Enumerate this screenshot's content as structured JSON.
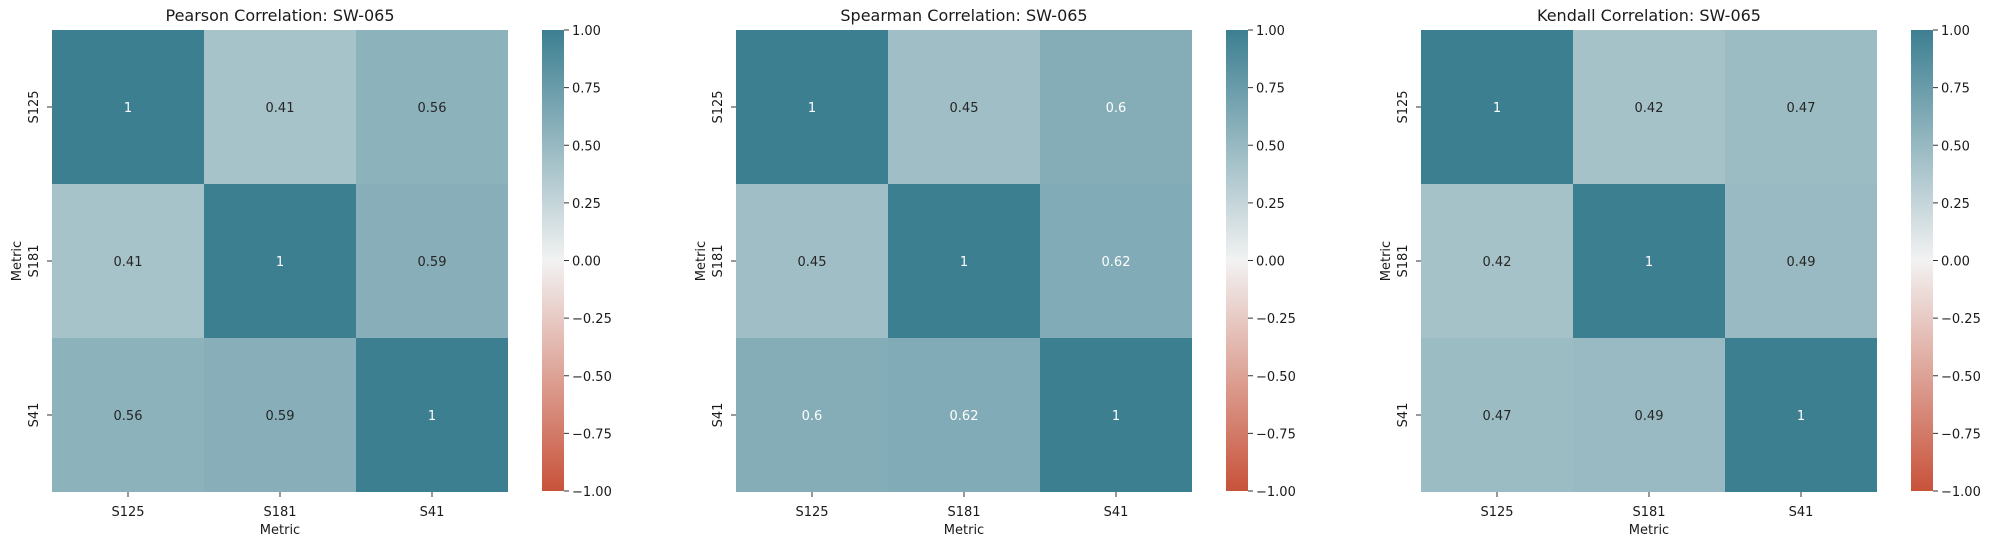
{
  "chart_data": [
    {
      "type": "heatmap",
      "title": "Pearson Correlation: SW-065",
      "xlabel": "Metric",
      "ylabel": "Metric",
      "x_categories": [
        "S125",
        "S181",
        "S41"
      ],
      "y_categories": [
        "S125",
        "S181",
        "S41"
      ],
      "values": [
        [
          1,
          0.41,
          0.56
        ],
        [
          0.41,
          1,
          0.59
        ],
        [
          0.56,
          0.59,
          1
        ]
      ],
      "cell_labels": [
        [
          "1",
          "0.41",
          "0.56"
        ],
        [
          "0.41",
          "1",
          "0.59"
        ],
        [
          "0.56",
          "0.59",
          "1"
        ]
      ],
      "colorbar": {
        "vmin": -1,
        "vmax": 1,
        "ticks": [
          "1.00",
          "0.75",
          "0.50",
          "0.25",
          "0.00",
          "−0.25",
          "−0.50",
          "−0.75",
          "−1.00"
        ],
        "colors": {
          "low": "#c8523a",
          "mid": "#f2f2f2",
          "high": "#3c7f91"
        }
      }
    },
    {
      "type": "heatmap",
      "title": "Spearman Correlation: SW-065",
      "xlabel": "Metric",
      "ylabel": "Metric",
      "x_categories": [
        "S125",
        "S181",
        "S41"
      ],
      "y_categories": [
        "S125",
        "S181",
        "S41"
      ],
      "values": [
        [
          1,
          0.45,
          0.6
        ],
        [
          0.45,
          1,
          0.62
        ],
        [
          0.6,
          0.62,
          1
        ]
      ],
      "cell_labels": [
        [
          "1",
          "0.45",
          "0.6"
        ],
        [
          "0.45",
          "1",
          "0.62"
        ],
        [
          "0.6",
          "0.62",
          "1"
        ]
      ],
      "colorbar": {
        "vmin": -1,
        "vmax": 1,
        "ticks": [
          "1.00",
          "0.75",
          "0.50",
          "0.25",
          "0.00",
          "−0.25",
          "−0.50",
          "−0.75",
          "−1.00"
        ],
        "colors": {
          "low": "#c8523a",
          "mid": "#f2f2f2",
          "high": "#3c7f91"
        }
      }
    },
    {
      "type": "heatmap",
      "title": "Kendall Correlation: SW-065",
      "xlabel": "Metric",
      "ylabel": "Metric",
      "x_categories": [
        "S125",
        "S181",
        "S41"
      ],
      "y_categories": [
        "S125",
        "S181",
        "S41"
      ],
      "values": [
        [
          1,
          0.42,
          0.47
        ],
        [
          0.42,
          1,
          0.49
        ],
        [
          0.47,
          0.49,
          1
        ]
      ],
      "cell_labels": [
        [
          "1",
          "0.42",
          "0.47"
        ],
        [
          "0.42",
          "1",
          "0.49"
        ],
        [
          "0.47",
          "0.49",
          "1"
        ]
      ],
      "colorbar": {
        "vmin": -1,
        "vmax": 1,
        "ticks": [
          "1.00",
          "0.75",
          "0.50",
          "0.25",
          "0.00",
          "−0.25",
          "−0.50",
          "−0.75",
          "−1.00"
        ],
        "colors": {
          "low": "#c8523a",
          "mid": "#f2f2f2",
          "high": "#3c7f91"
        }
      }
    }
  ]
}
